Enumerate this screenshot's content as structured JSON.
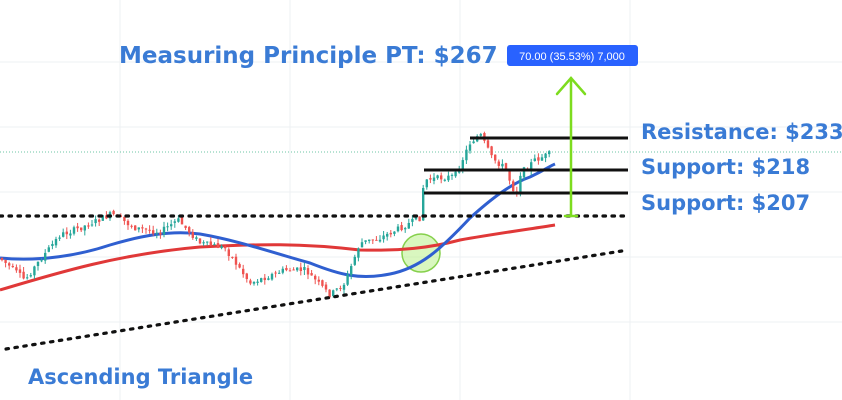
{
  "chart_data": {
    "type": "candlestick",
    "annotations": {
      "title": "Measuring Principle PT: $267",
      "pattern_label": "Ascending Triangle",
      "resistance_label": "Resistance: $233",
      "support_high_label": "Support: $218",
      "support_low_label": "Support: $207",
      "measure_badge": "70.00 (35.53%) 7,000"
    },
    "levels": {
      "resistance": 233,
      "support_high": 218,
      "support_low": 207,
      "triangle_top": 197,
      "price_target": 267,
      "measured_move": 70
    },
    "series": [
      {
        "name": "MA fast",
        "color": "#2f5fd0"
      },
      {
        "name": "MA slow",
        "color": "#e03838"
      }
    ],
    "ylim": [
      150,
      280
    ],
    "grid": true,
    "colors": {
      "up": "#26a69a",
      "down": "#ef5350",
      "ma_fast": "#2f5fd0",
      "ma_slow": "#e03838",
      "measure_arrow": "#7ddc1f",
      "label": "#3a7bd5",
      "badge_bg": "#2962ff",
      "breakout_circle": "#b9f08a"
    }
  }
}
